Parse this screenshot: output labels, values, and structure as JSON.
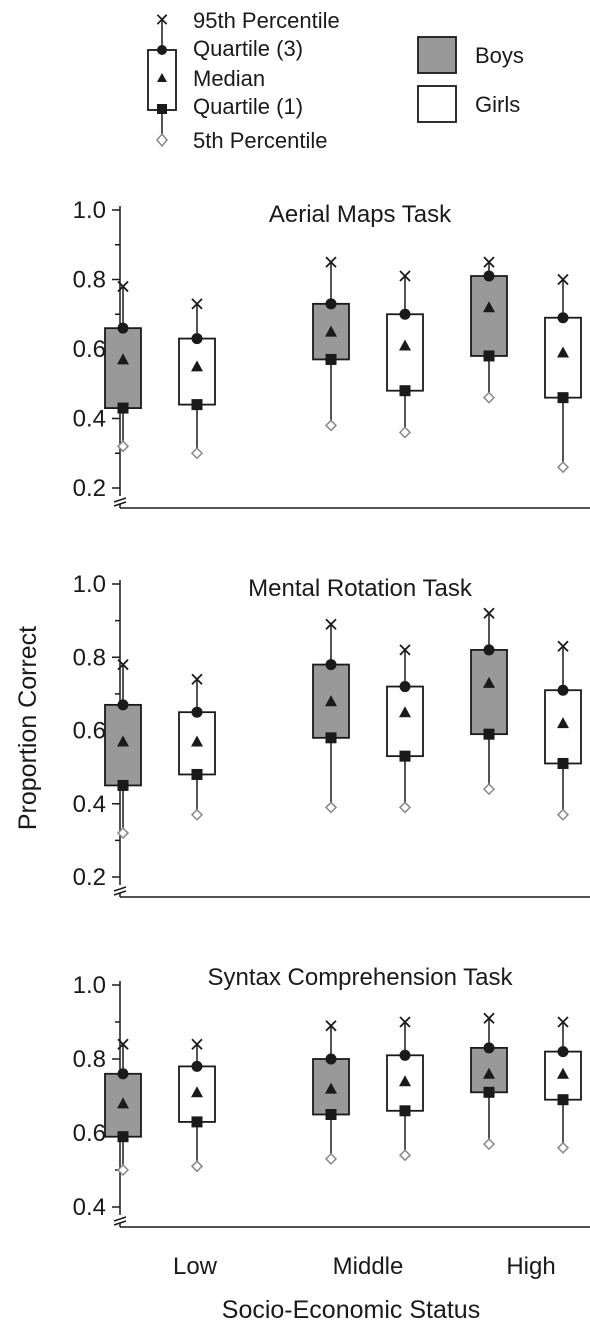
{
  "legend": {
    "p95": "95th Percentile",
    "q3": "Quartile (3)",
    "median": "Median",
    "q1": "Quartile (1)",
    "p5": "5th Percentile",
    "boys": "Boys",
    "girls": "Girls"
  },
  "colors": {
    "boys_fill": "#999999",
    "girls_fill": "#ffffff",
    "ink": "#1a1a1a",
    "p5_marker": "#888888"
  },
  "chart_data": [
    {
      "type": "box",
      "title": "Aerial Maps Task",
      "ylabel": "Proportion Correct",
      "xlabel": "Socio-Economic Status",
      "categories": [
        "Low",
        "Middle",
        "High"
      ],
      "ylim": [
        0.2,
        1.0
      ],
      "yticks": [
        "0.2",
        "0.4",
        "0.6",
        "0.8",
        "1.0"
      ],
      "series": [
        {
          "name": "Boys",
          "p95": [
            0.78,
            0.85,
            0.85
          ],
          "q3": [
            0.66,
            0.73,
            0.81
          ],
          "median": [
            0.57,
            0.65,
            0.72
          ],
          "q1": [
            0.43,
            0.57,
            0.58
          ],
          "p5": [
            0.32,
            0.38,
            0.46
          ]
        },
        {
          "name": "Girls",
          "p95": [
            0.73,
            0.81,
            0.8
          ],
          "q3": [
            0.63,
            0.7,
            0.69
          ],
          "median": [
            0.55,
            0.61,
            0.59
          ],
          "q1": [
            0.44,
            0.48,
            0.46
          ],
          "p5": [
            0.3,
            0.36,
            0.26
          ]
        }
      ]
    },
    {
      "type": "box",
      "title": "Mental Rotation Task",
      "ylabel": "Proportion Correct",
      "xlabel": "Socio-Economic Status",
      "categories": [
        "Low",
        "Middle",
        "High"
      ],
      "ylim": [
        0.2,
        1.0
      ],
      "yticks": [
        "0.2",
        "0.4",
        "0.6",
        "0.8",
        "1.0"
      ],
      "series": [
        {
          "name": "Boys",
          "p95": [
            0.78,
            0.89,
            0.92
          ],
          "q3": [
            0.67,
            0.78,
            0.82
          ],
          "median": [
            0.57,
            0.68,
            0.73
          ],
          "q1": [
            0.45,
            0.58,
            0.59
          ],
          "p5": [
            0.32,
            0.39,
            0.44
          ]
        },
        {
          "name": "Girls",
          "p95": [
            0.74,
            0.82,
            0.83
          ],
          "q3": [
            0.65,
            0.72,
            0.71
          ],
          "median": [
            0.57,
            0.65,
            0.62
          ],
          "q1": [
            0.48,
            0.53,
            0.51
          ],
          "p5": [
            0.37,
            0.39,
            0.37
          ]
        }
      ]
    },
    {
      "type": "box",
      "title": "Syntax Comprehension Task",
      "ylabel": "Proportion Correct",
      "xlabel": "Socio-Economic Status",
      "categories": [
        "Low",
        "Middle",
        "High"
      ],
      "ylim": [
        0.4,
        1.0
      ],
      "yticks": [
        "0.4",
        "0.6",
        "0.8",
        "1.0"
      ],
      "series": [
        {
          "name": "Boys",
          "p95": [
            0.84,
            0.89,
            0.91
          ],
          "q3": [
            0.76,
            0.8,
            0.83
          ],
          "median": [
            0.68,
            0.72,
            0.76
          ],
          "q1": [
            0.59,
            0.65,
            0.71
          ],
          "p5": [
            0.5,
            0.53,
            0.57
          ]
        },
        {
          "name": "Girls",
          "p95": [
            0.84,
            0.9,
            0.9
          ],
          "q3": [
            0.78,
            0.81,
            0.82
          ],
          "median": [
            0.71,
            0.74,
            0.76
          ],
          "q1": [
            0.63,
            0.66,
            0.69
          ],
          "p5": [
            0.51,
            0.54,
            0.56
          ]
        }
      ]
    }
  ]
}
